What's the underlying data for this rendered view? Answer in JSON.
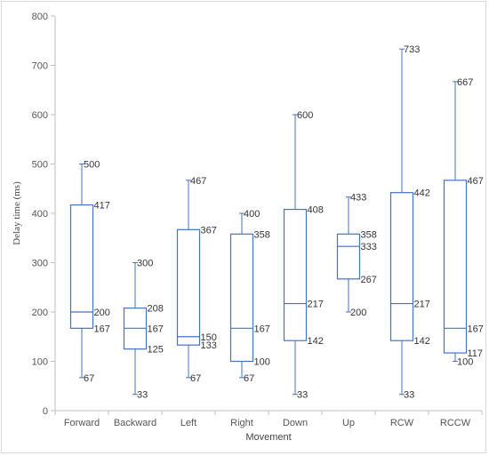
{
  "chart_data": {
    "type": "boxplot",
    "xlabel": "Movement",
    "ylabel": "Delay time (ms)",
    "ylim": [
      0,
      800
    ],
    "yticks": [
      0,
      100,
      200,
      300,
      400,
      500,
      600,
      700,
      800
    ],
    "grid": false,
    "box_color": "#4472c4",
    "categories": [
      "Forward",
      "Backward",
      "Left",
      "Right",
      "Down",
      "Up",
      "RCW",
      "RCCW"
    ],
    "boxes": [
      {
        "min": 67,
        "q1": 167,
        "median": 200,
        "q3": 417,
        "max": 500,
        "labels": [
          "500",
          "417",
          "200",
          "167",
          "67"
        ]
      },
      {
        "min": 33,
        "q1": 125,
        "median": 167,
        "q3": 208,
        "max": 300,
        "labels": [
          "300",
          "208",
          "167",
          "125",
          "33"
        ]
      },
      {
        "min": 67,
        "q1": 133,
        "median": 150,
        "q3": 367,
        "max": 467,
        "labels": [
          "467",
          "367",
          "150",
          "133",
          "67"
        ]
      },
      {
        "min": 67,
        "q1": 100,
        "median": 167,
        "q3": 358,
        "max": 400,
        "labels": [
          "400",
          "358",
          "167",
          "100",
          "67"
        ]
      },
      {
        "min": 33,
        "q1": 142,
        "median": 217,
        "q3": 408,
        "max": 600,
        "labels": [
          "600",
          "408",
          "217",
          "142",
          "33"
        ]
      },
      {
        "min": 200,
        "q1": 267,
        "median": 333,
        "q3": 358,
        "max": 433,
        "labels": [
          "433",
          "358",
          "333",
          "267",
          "200"
        ]
      },
      {
        "min": 33,
        "q1": 142,
        "median": 217,
        "q3": 442,
        "max": 733,
        "labels": [
          "733",
          "442",
          "217",
          "142",
          "33"
        ]
      },
      {
        "min": 100,
        "q1": 117,
        "median": 167,
        "q3": 467,
        "max": 667,
        "labels": [
          "667",
          "467",
          "167",
          "117",
          "100"
        ]
      }
    ]
  }
}
